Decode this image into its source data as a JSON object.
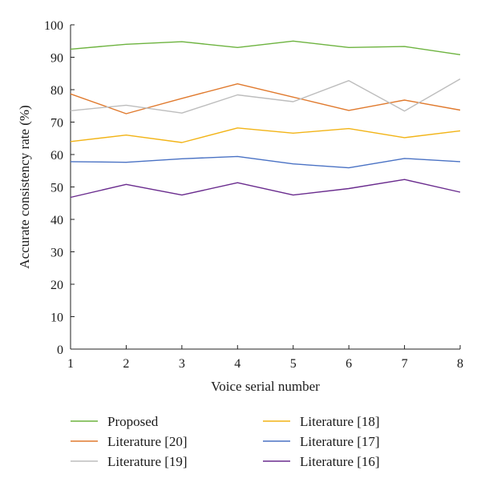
{
  "chart_data": {
    "type": "line",
    "xlabel": "Voice serial number",
    "ylabel": "Accurate consistency rate (%)",
    "x": [
      1,
      2,
      3,
      4,
      5,
      6,
      7,
      8
    ],
    "xlim": [
      1,
      8
    ],
    "ylim": [
      0,
      100
    ],
    "yticks": [
      0,
      10,
      20,
      30,
      40,
      50,
      60,
      70,
      80,
      90,
      100
    ],
    "grid": false,
    "legend_position": "bottom",
    "series": [
      {
        "name": "Proposed",
        "color": "#6db33f",
        "values": [
          92.5,
          94,
          94.8,
          93,
          95,
          93,
          93.3,
          90.8
        ]
      },
      {
        "name": "Literature [20]",
        "color": "#e07a2e",
        "values": [
          78.7,
          72.6,
          77.3,
          81.8,
          77.7,
          73.6,
          76.8,
          73.7
        ]
      },
      {
        "name": "Literature [19]",
        "color": "#bdbdbd",
        "values": [
          73.5,
          75.2,
          72.8,
          78.4,
          76.3,
          82.8,
          73.4,
          83.3
        ]
      },
      {
        "name": "Literature [18]",
        "color": "#f2b417",
        "values": [
          64,
          66,
          63.7,
          68.2,
          66.6,
          68,
          65.2,
          67.3
        ]
      },
      {
        "name": "Literature [17]",
        "color": "#4a72c4",
        "values": [
          57.8,
          57.6,
          58.7,
          59.4,
          57.1,
          55.9,
          58.8,
          57.8
        ]
      },
      {
        "name": "Literature [16]",
        "color": "#6a2c8e",
        "values": [
          46.8,
          50.8,
          47.5,
          51.3,
          47.5,
          49.5,
          52.3,
          48.4
        ]
      }
    ],
    "legend_order": [
      0,
      3,
      1,
      4,
      2,
      5
    ]
  }
}
